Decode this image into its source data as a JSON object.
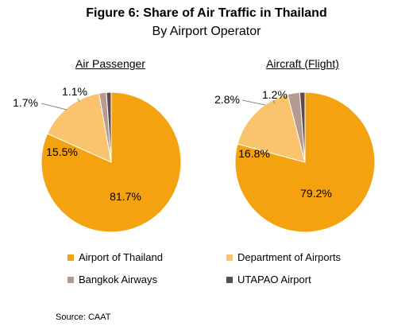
{
  "title": "Figure 6:  Share of Air Traffic in Thailand",
  "subtitle": "By Airport Operator",
  "source": "Source: CAAT",
  "colors": {
    "Airport of Thailand": "#F4A20F",
    "Department of Airports": "#FAC36D",
    "Bangkok Airways": "#B59A92",
    "UTAPAO  Airport": "#5E4A4D"
  },
  "chart_data": [
    {
      "type": "pie",
      "title": "Air Passenger",
      "categories": [
        "Airport of Thailand",
        "Department of Airports",
        "Bangkok Airways",
        "UTAPAO  Airport"
      ],
      "values": [
        81.7,
        15.5,
        1.7,
        1.1
      ],
      "labels": [
        "81.7%",
        "15.5%",
        "1.7%",
        "1.1%"
      ]
    },
    {
      "type": "pie",
      "title": "Aircraft (Flight)",
      "categories": [
        "Airport of Thailand",
        "Department of Airports",
        "Bangkok Airways",
        "UTAPAO  Airport"
      ],
      "values": [
        79.2,
        16.8,
        2.8,
        1.2
      ],
      "labels": [
        "79.2%",
        "16.8%",
        "2.8%",
        "1.2%"
      ]
    }
  ],
  "legend": [
    "Airport of Thailand",
    "Department of Airports",
    "Bangkok Airways",
    "UTAPAO  Airport"
  ]
}
